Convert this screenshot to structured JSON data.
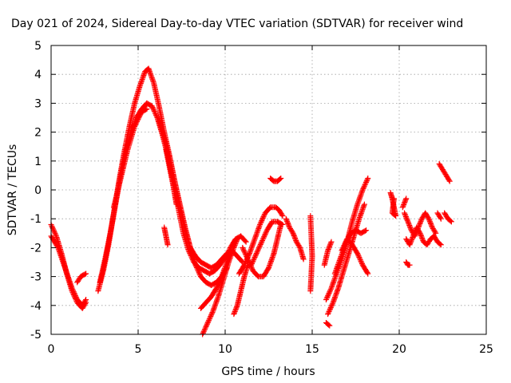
{
  "chart_data": {
    "type": "scatter",
    "title": "Day 021 of 2024, Sidereal Day-to-day VTEC variation (SDTVAR) for receiver wind",
    "xlabel": "GPS time / hours",
    "ylabel": "SDTVAR / TECUs",
    "xlim": [
      0,
      25
    ],
    "ylim": [
      -5,
      5
    ],
    "xticks": [
      0,
      5,
      10,
      15,
      20,
      25
    ],
    "yticks": [
      -5,
      -4,
      -3,
      -2,
      -1,
      0,
      1,
      2,
      3,
      4,
      5
    ],
    "grid": true,
    "marker": "plus",
    "color": "#ff0000",
    "segments": [
      {
        "name": "arc-1a",
        "x": [
          0.0,
          0.3,
          0.6,
          0.9,
          1.2,
          1.5,
          1.8,
          2.0
        ],
        "y": [
          -1.2,
          -1.6,
          -2.2,
          -2.9,
          -3.5,
          -3.9,
          -4.1,
          -3.9
        ]
      },
      {
        "name": "arc-1b",
        "x": [
          0.0,
          0.4,
          0.8,
          1.2,
          1.5,
          1.8,
          2.0
        ],
        "y": [
          -1.6,
          -2.0,
          -2.7,
          -3.4,
          -3.8,
          -4.0,
          -3.8
        ]
      },
      {
        "name": "arc-1c",
        "x": [
          1.5,
          1.7,
          2.0
        ],
        "y": [
          -3.2,
          -3.0,
          -2.9
        ]
      },
      {
        "name": "rise-a",
        "x": [
          2.7,
          3.0,
          3.3,
          3.6,
          3.9,
          4.2,
          4.5,
          4.8,
          5.1,
          5.4,
          5.6
        ],
        "y": [
          -3.5,
          -2.8,
          -1.9,
          -0.8,
          0.3,
          1.3,
          2.2,
          3.0,
          3.6,
          4.1,
          4.2
        ]
      },
      {
        "name": "rise-b",
        "x": [
          2.8,
          3.1,
          3.4,
          3.7,
          4.0,
          4.3,
          4.6,
          4.9,
          5.2,
          5.5
        ],
        "y": [
          -3.2,
          -2.4,
          -1.5,
          -0.5,
          0.5,
          1.4,
          2.0,
          2.5,
          2.8,
          3.0
        ]
      },
      {
        "name": "rise-c",
        "x": [
          3.6,
          4.0,
          4.4,
          4.8,
          5.2,
          5.5
        ],
        "y": [
          -0.6,
          0.4,
          1.4,
          2.2,
          2.7,
          2.8
        ]
      },
      {
        "name": "fall-a",
        "x": [
          5.6,
          5.9,
          6.2,
          6.5,
          6.8,
          7.1,
          7.4,
          7.7,
          8.0,
          8.3,
          8.6,
          8.9,
          9.2,
          9.5,
          9.8,
          10.1,
          10.4,
          10.7,
          11.0
        ],
        "y": [
          4.2,
          3.7,
          2.9,
          2.0,
          1.2,
          0.3,
          -0.6,
          -1.4,
          -2.0,
          -2.3,
          -2.5,
          -2.6,
          -2.7,
          -2.6,
          -2.4,
          -2.2,
          -2.1,
          -2.3,
          -2.5
        ]
      },
      {
        "name": "fall-b",
        "x": [
          5.5,
          5.8,
          6.1,
          6.4,
          6.7,
          7.0,
          7.3,
          7.6,
          7.9,
          8.2,
          8.5,
          8.8,
          9.1,
          9.4,
          9.7,
          10.0
        ],
        "y": [
          3.0,
          2.9,
          2.5,
          1.9,
          1.2,
          0.3,
          -0.6,
          -1.5,
          -2.1,
          -2.5,
          -2.7,
          -2.8,
          -2.9,
          -2.8,
          -2.6,
          -2.3
        ]
      },
      {
        "name": "fall-c",
        "x": [
          6.2,
          6.5,
          6.8,
          7.1,
          7.4,
          7.7,
          8.0,
          8.3,
          8.6,
          8.9,
          9.2,
          9.5,
          9.8,
          10.1
        ],
        "y": [
          2.4,
          1.8,
          1.1,
          0.3,
          -0.5,
          -1.3,
          -2.0,
          -2.6,
          -3.0,
          -3.2,
          -3.3,
          -3.2,
          -3.0,
          -2.7
        ]
      },
      {
        "name": "fall-d",
        "x": [
          6.6,
          6.8,
          7.0,
          7.2
        ],
        "y": [
          1.4,
          0.8,
          0.2,
          -0.5
        ]
      },
      {
        "name": "drop-a",
        "x": [
          8.6,
          8.9,
          9.2,
          9.5,
          9.8,
          10.1,
          10.3
        ],
        "y": [
          -4.1,
          -3.9,
          -3.7,
          -3.4,
          -3.0,
          -2.5,
          -2.2
        ]
      },
      {
        "name": "drop-b",
        "x": [
          8.7,
          9.0,
          9.3,
          9.6,
          9.9,
          10.2,
          10.5,
          10.7
        ],
        "y": [
          -5.0,
          -4.6,
          -4.2,
          -3.7,
          -3.1,
          -2.5,
          -2.0,
          -1.7
        ]
      },
      {
        "name": "drop-c",
        "x": [
          10.5,
          10.7,
          10.9,
          11.1,
          11.3
        ],
        "y": [
          -4.3,
          -4.0,
          -3.5,
          -3.0,
          -2.6
        ]
      },
      {
        "name": "drop-d",
        "x": [
          6.5,
          6.6,
          6.7
        ],
        "y": [
          -1.3,
          -1.6,
          -1.9
        ]
      },
      {
        "name": "loop-a",
        "x": [
          10.8,
          11.1,
          11.4,
          11.7,
          12.0,
          12.3,
          12.6,
          12.9,
          13.1,
          13.3
        ],
        "y": [
          -2.9,
          -2.6,
          -2.2,
          -1.7,
          -1.2,
          -0.8,
          -0.6,
          -0.6,
          -0.7,
          -0.9
        ]
      },
      {
        "name": "loop-b",
        "x": [
          11.0,
          11.3,
          11.6,
          11.9,
          12.2,
          12.5,
          12.8,
          13.0,
          13.2
        ],
        "y": [
          -2.0,
          -2.4,
          -2.8,
          -3.0,
          -3.0,
          -2.7,
          -2.2,
          -1.7,
          -1.2
        ]
      },
      {
        "name": "loop-c",
        "x": [
          11.5,
          11.8,
          12.1,
          12.4,
          12.7,
          13.0,
          13.3
        ],
        "y": [
          -2.6,
          -2.2,
          -1.8,
          -1.4,
          -1.1,
          -1.1,
          -1.2
        ]
      },
      {
        "name": "loop-d",
        "x": [
          10.0,
          10.3,
          10.6,
          10.9,
          11.2
        ],
        "y": [
          -2.4,
          -2.0,
          -1.7,
          -1.6,
          -1.8
        ]
      },
      {
        "name": "isolated-a",
        "x": [
          12.6,
          12.8,
          13.0,
          13.2
        ],
        "y": [
          0.4,
          0.3,
          0.3,
          0.4
        ]
      },
      {
        "name": "isolated-b",
        "x": [
          13.5,
          13.7,
          13.9,
          14.1,
          14.3,
          14.5
        ],
        "y": [
          -1.0,
          -1.3,
          -1.5,
          -1.8,
          -2.0,
          -2.4
        ]
      },
      {
        "name": "isolated-c",
        "x": [
          14.9,
          15.0,
          14.9
        ],
        "y": [
          -0.9,
          -2.3,
          -3.5
        ]
      },
      {
        "name": "arc-2a",
        "x": [
          15.8,
          16.1,
          16.4,
          16.7,
          17.0,
          17.3,
          17.6,
          17.9,
          18.2
        ],
        "y": [
          -3.8,
          -3.4,
          -2.9,
          -2.4,
          -1.8,
          -1.1,
          -0.5,
          0.0,
          0.4
        ]
      },
      {
        "name": "arc-2b",
        "x": [
          15.9,
          16.2,
          16.5,
          16.8,
          17.1,
          17.4,
          17.7,
          18.0
        ],
        "y": [
          -4.3,
          -3.9,
          -3.4,
          -2.8,
          -2.2,
          -1.6,
          -1.0,
          -0.5
        ]
      },
      {
        "name": "arc-2c",
        "x": [
          16.3,
          16.6,
          16.9,
          17.2,
          17.5,
          17.8,
          18.1
        ],
        "y": [
          -2.9,
          -2.4,
          -1.9,
          -1.5,
          -1.4,
          -1.5,
          -1.4
        ]
      },
      {
        "name": "arc-2d",
        "x": [
          16.7,
          17.0,
          17.3,
          17.6,
          17.9,
          18.2
        ],
        "y": [
          -2.1,
          -1.7,
          -1.9,
          -2.2,
          -2.6,
          -2.9
        ]
      },
      {
        "name": "arc-2e",
        "x": [
          15.7,
          15.9,
          16.1
        ],
        "y": [
          -2.6,
          -2.1,
          -1.8
        ]
      },
      {
        "name": "arc-2f",
        "x": [
          15.8,
          16.0
        ],
        "y": [
          -4.6,
          -4.7
        ]
      },
      {
        "name": "cluster-20",
        "x": [
          19.5,
          19.6,
          19.7,
          19.8,
          19.6,
          19.7
        ],
        "y": [
          -0.1,
          -0.3,
          -0.6,
          -0.9,
          -0.8,
          -0.3
        ]
      },
      {
        "name": "cluster-21a",
        "x": [
          20.3,
          20.5,
          20.7,
          20.9,
          21.1,
          21.3,
          21.5,
          21.7,
          21.9,
          22.1
        ],
        "y": [
          -0.8,
          -1.1,
          -1.4,
          -1.6,
          -1.3,
          -1.0,
          -0.8,
          -1.0,
          -1.3,
          -1.5
        ]
      },
      {
        "name": "cluster-21b",
        "x": [
          20.4,
          20.6,
          20.8,
          21.0,
          21.2,
          21.4,
          21.6,
          21.8,
          22.0,
          22.2,
          22.4
        ],
        "y": [
          -1.7,
          -1.9,
          -1.6,
          -1.3,
          -1.5,
          -1.8,
          -1.9,
          -1.7,
          -1.6,
          -1.8,
          -1.9
        ]
      },
      {
        "name": "cluster-21c",
        "x": [
          20.4,
          20.5,
          20.6
        ],
        "y": [
          -2.5,
          -2.6,
          -2.6
        ]
      },
      {
        "name": "cluster-21d",
        "x": [
          20.2,
          20.4
        ],
        "y": [
          -0.6,
          -0.3
        ]
      },
      {
        "name": "tail-22a",
        "x": [
          22.3,
          22.5,
          22.7,
          22.9
        ],
        "y": [
          0.9,
          0.7,
          0.5,
          0.3
        ]
      },
      {
        "name": "tail-22b",
        "x": [
          22.6,
          22.8,
          23.0
        ],
        "y": [
          -0.8,
          -1.0,
          -1.1
        ]
      },
      {
        "name": "tail-22c",
        "x": [
          22.2,
          22.4
        ],
        "y": [
          -0.8,
          -1.0
        ]
      }
    ]
  }
}
